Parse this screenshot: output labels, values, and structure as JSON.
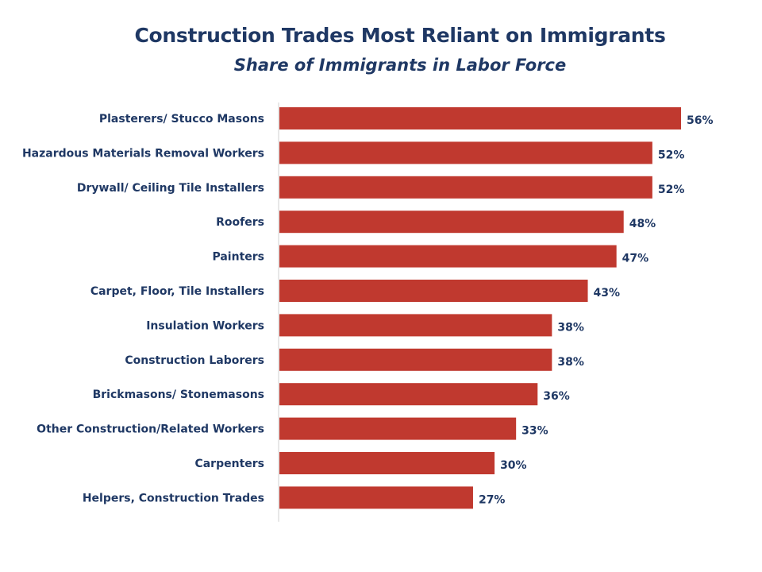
{
  "title": "Construction Trades Most Reliant on Immigrants",
  "subtitle": "Share of Immigrants in Labor Force",
  "colors": {
    "bar": "#c0392f",
    "text": "#1f3864",
    "axis": "#d0d0d0"
  },
  "chart_data": {
    "type": "bar",
    "orientation": "horizontal",
    "title": "Construction Trades Most Reliant on Immigrants",
    "subtitle": "Share of Immigrants in Labor Force",
    "categories": [
      "Plasterers/ Stucco Masons",
      "Hazardous Materials Removal Workers",
      "Drywall/ Ceiling Tile Installers",
      "Roofers",
      "Painters",
      "Carpet, Floor, Tile Installers",
      "Insulation Workers",
      "Construction Laborers",
      "Brickmasons/ Stonemasons",
      "Other Construction/Related Workers",
      "Carpenters",
      "Helpers, Construction Trades"
    ],
    "values": [
      56,
      52,
      52,
      48,
      47,
      43,
      38,
      38,
      36,
      33,
      30,
      27
    ],
    "value_labels": [
      "56%",
      "52%",
      "52%",
      "48%",
      "47%",
      "43%",
      "38%",
      "38%",
      "36%",
      "33%",
      "30%",
      "27%"
    ],
    "unit": "%",
    "xlim": [
      0,
      56
    ],
    "grid": false,
    "legend": "none"
  }
}
